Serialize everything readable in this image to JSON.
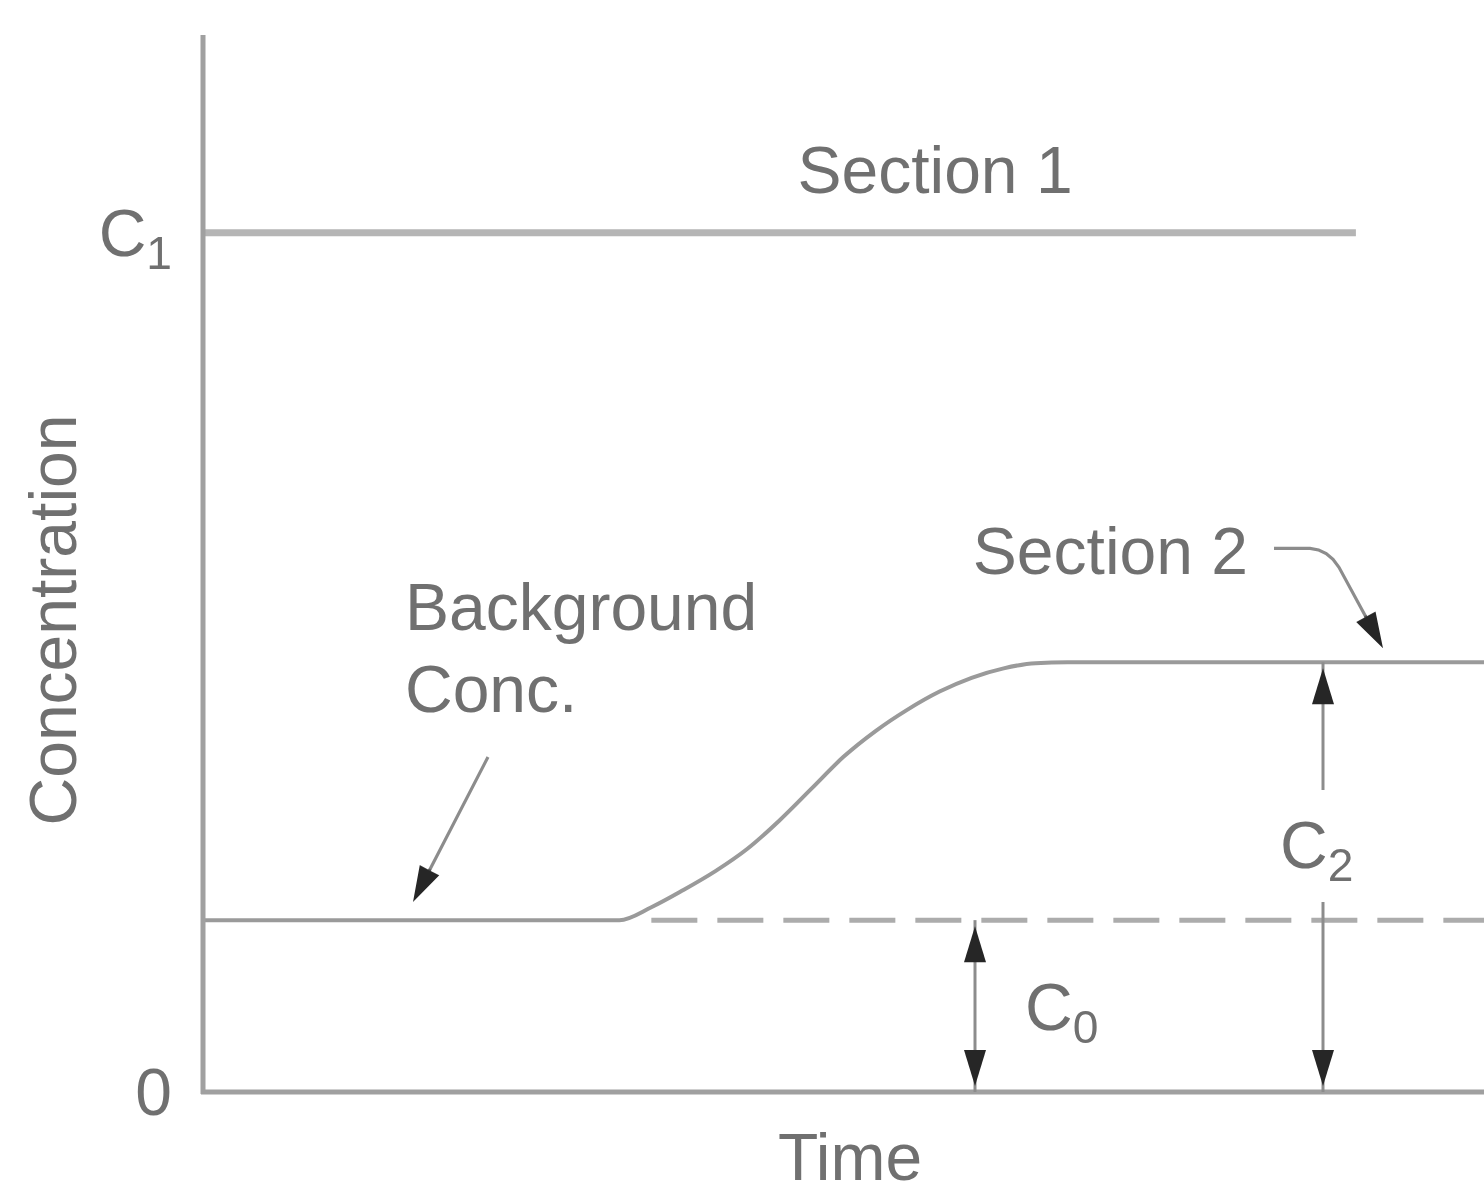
{
  "chart_data": {
    "type": "line",
    "categories": [
      null,
      null,
      null,
      null,
      null,
      null,
      null,
      null,
      null,
      null,
      null,
      null,
      null,
      null,
      null,
      null,
      null,
      null,
      null,
      null,
      null,
      null,
      null,
      null,
      null,
      null,
      null,
      null,
      null,
      null,
      null,
      null,
      null,
      null,
      null,
      null,
      null,
      null,
      null,
      null,
      null
    ],
    "ylim": [
      0,
      1.23
    ],
    "yticks": [
      0,
      {
        "value": 1,
        "label": "C$_{1}$"
      }
    ],
    "ylabel": "Concentration",
    "xlabel": "Time",
    "tick_labels": "y",
    "series": [
      {
        "name": "Section 1",
        "color": "#b5b5b5",
        "values": [
          1,
          1,
          1,
          1,
          1,
          1,
          1,
          1,
          1,
          1,
          1,
          1,
          1,
          1,
          1,
          1,
          1,
          1,
          1,
          1,
          1,
          1,
          1,
          1,
          1,
          1,
          1,
          1,
          1,
          1,
          1,
          1,
          1,
          1,
          1,
          1,
          1,
          null,
          null,
          null,
          null
        ]
      },
      {
        "name": "Section 2",
        "color": "#9a9a9a",
        "values": [
          0.2,
          0.2,
          0.2,
          0.2,
          0.2,
          0.2,
          0.2,
          0.2,
          0.2,
          0.2,
          0.2,
          0.2,
          0.2,
          0.2,
          0.215,
          0.235,
          0.257,
          0.283,
          0.316,
          0.353,
          0.39,
          0.42,
          0.445,
          0.466,
          0.482,
          0.493,
          0.499,
          0.5,
          0.5,
          0.5,
          0.5,
          0.5,
          0.5,
          0.5,
          0.5,
          0.5,
          0.5,
          0.5,
          0.5,
          0.5,
          0.5
        ]
      },
      {
        "color": "#acacac",
        "line_style": "dashed",
        "values": [
          null,
          null,
          null,
          null,
          null,
          null,
          null,
          null,
          null,
          null,
          null,
          null,
          null,
          null,
          0.2,
          0.2,
          0.2,
          0.2,
          0.2,
          0.2,
          0.2,
          0.2,
          0.2,
          0.2,
          0.2,
          0.2,
          0.2,
          0.2,
          0.2,
          0.2,
          0.2,
          0.2,
          0.2,
          0.2,
          0.2,
          0.2,
          0.2,
          0.2,
          0.2,
          0.2,
          0.2
        ]
      }
    ],
    "annotations": [
      "Background Conc.",
      "C$_{2}$",
      "C$_{0}$"
    ]
  }
}
